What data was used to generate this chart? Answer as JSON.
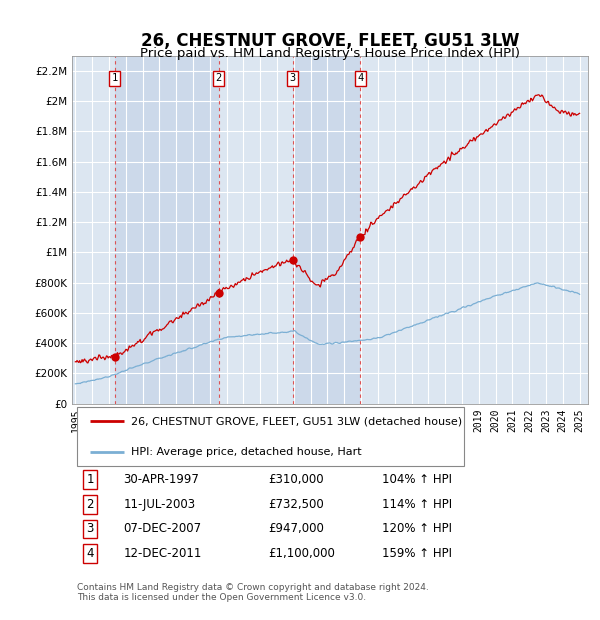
{
  "title": "26, CHESTNUT GROVE, FLEET, GU51 3LW",
  "subtitle": "Price paid vs. HM Land Registry's House Price Index (HPI)",
  "title_fontsize": 12,
  "subtitle_fontsize": 9.5,
  "background_color": "#ffffff",
  "plot_bg_color": "#dce6f1",
  "plot_bg_alt_color": "#ccd9ea",
  "grid_color": "#ffffff",
  "ylim": [
    0,
    2300000
  ],
  "xlim_start": 1994.8,
  "xlim_end": 2025.5,
  "yticks": [
    0,
    200000,
    400000,
    600000,
    800000,
    1000000,
    1200000,
    1400000,
    1600000,
    1800000,
    2000000,
    2200000
  ],
  "ytick_labels": [
    "£0",
    "£200K",
    "£400K",
    "£600K",
    "£800K",
    "£1M",
    "£1.2M",
    "£1.4M",
    "£1.6M",
    "£1.8M",
    "£2M",
    "£2.2M"
  ],
  "xticks": [
    1995,
    1996,
    1997,
    1998,
    1999,
    2000,
    2001,
    2002,
    2003,
    2004,
    2005,
    2006,
    2007,
    2008,
    2009,
    2010,
    2011,
    2012,
    2013,
    2014,
    2015,
    2016,
    2017,
    2018,
    2019,
    2020,
    2021,
    2022,
    2023,
    2024,
    2025
  ],
  "sale_events": [
    {
      "num": 1,
      "year": 1997.33,
      "price": 310000,
      "date": "30-APR-1997",
      "pct": "104%",
      "label": "£310,000"
    },
    {
      "num": 2,
      "year": 2003.53,
      "price": 732500,
      "date": "11-JUL-2003",
      "pct": "114%",
      "label": "£732,500"
    },
    {
      "num": 3,
      "year": 2007.92,
      "price": 947000,
      "date": "07-DEC-2007",
      "pct": "120%",
      "label": "£947,000"
    },
    {
      "num": 4,
      "year": 2011.95,
      "price": 1100000,
      "date": "12-DEC-2011",
      "pct": "159%",
      "label": "£1,100,000"
    }
  ],
  "legend_line1": "26, CHESTNUT GROVE, FLEET, GU51 3LW (detached house)",
  "legend_line2": "HPI: Average price, detached house, Hart",
  "footer": "Contains HM Land Registry data © Crown copyright and database right 2024.\nThis data is licensed under the Open Government Licence v3.0.",
  "red_line_color": "#cc0000",
  "blue_line_color": "#7bafd4",
  "dashed_line_color": "#dd4444",
  "marker_color": "#cc0000",
  "sale_box_color": "#cc0000",
  "fig_width": 6.0,
  "fig_height": 6.2
}
